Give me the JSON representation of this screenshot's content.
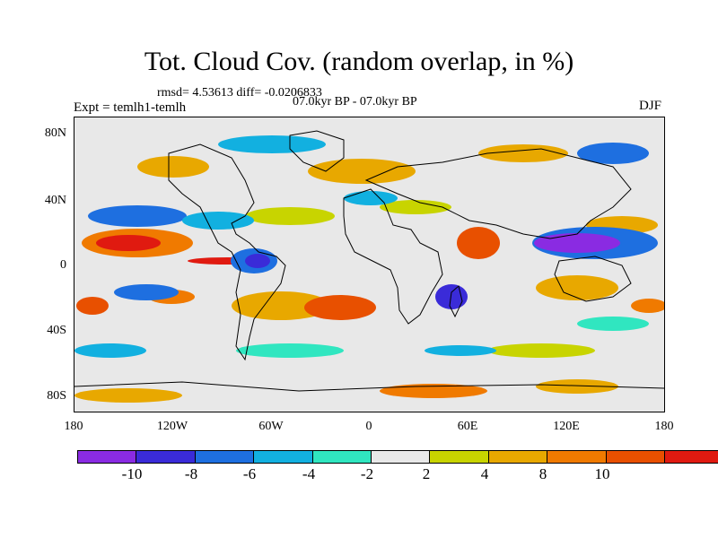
{
  "title": "Tot. Cloud Cov. (random overlap, in %)",
  "stats": "rmsd= 4.53613 diff= -0.0206833",
  "period": "07.0kyr BP - 07.0kyr BP",
  "experiment": "Expt = temlh1-temlh",
  "season": "DJF",
  "map": {
    "y_ticks": [
      "80N",
      "40N",
      "0",
      "40S",
      "80S"
    ],
    "x_ticks": [
      "180",
      "120W",
      "60W",
      "0",
      "60E",
      "120E",
      "180"
    ]
  },
  "colorbar": {
    "colors": [
      "#8a2be2",
      "#3a2bd8",
      "#1e6fe0",
      "#12b0e0",
      "#30e6c0",
      "#e8e8e8",
      "#c8d400",
      "#e8a800",
      "#f07a00",
      "#e85000",
      "#e01a10"
    ],
    "labels": [
      "-10",
      "-8",
      "-6",
      "-4",
      "-2",
      "2",
      "4",
      "8",
      "10"
    ]
  }
}
